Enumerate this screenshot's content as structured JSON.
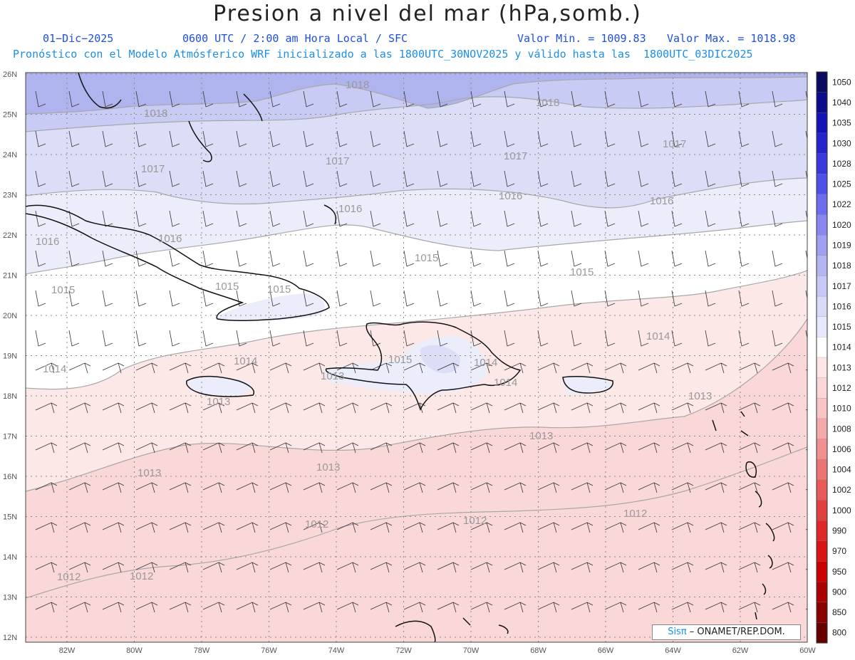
{
  "header": {
    "title": "Presion a nivel del mar (hPa,somb.)",
    "date": "01−Dic−2025",
    "time_info": "0600 UTC / 2:00 am Hora Local / SFC",
    "min_label": "Valor Min. = 1009.83",
    "max_label": "Valor Max. = 1018.98",
    "model_info": "Pronóstico con el Modelo Atmósferico WRF inicializado a las 1800UTC_30NOV2025 y válido hasta las  1800UTC_03DIC2025"
  },
  "map": {
    "lon_ticks": [
      "82W",
      "80W",
      "78W",
      "76W",
      "74W",
      "72W",
      "70W",
      "68W",
      "66W",
      "64W",
      "62W",
      "60W"
    ],
    "lat_ticks": [
      "26N",
      "25N",
      "24N",
      "23N",
      "22N",
      "21N",
      "20N",
      "19N",
      "18N",
      "17N",
      "16N",
      "15N",
      "14N",
      "13N",
      "12N"
    ],
    "contour_labels": [
      "1018",
      "1018",
      "1018",
      "1017",
      "1017",
      "1017",
      "1017",
      "1016",
      "1016",
      "1016",
      "1016",
      "1016",
      "1015",
      "1015",
      "1015",
      "1015",
      "1015",
      "1015",
      "1014",
      "1014",
      "1014",
      "1014",
      "1014",
      "1013",
      "1013",
      "1013",
      "1013",
      "1013",
      "1013",
      "1012",
      "1012",
      "1012",
      "1012",
      "1012"
    ],
    "colors": {
      "1018": "#b0b4ee",
      "1017": "#c8cbf3",
      "1016": "#dcdef8",
      "1015": "#ebedfb",
      "1014": "#ffffff",
      "1013": "#fde8e8",
      "1012": "#fad8d8",
      "contour_line": "#a8a8a8",
      "coast": "#111111"
    }
  },
  "colorbar": {
    "labels": [
      "1050",
      "1040",
      "1035",
      "1030",
      "1028",
      "1025",
      "1022",
      "1020",
      "1019",
      "1018",
      "1017",
      "1016",
      "1015",
      "1014",
      "1013",
      "1012",
      "1010",
      "1008",
      "1006",
      "1004",
      "1002",
      "1000",
      "990",
      "970",
      "950",
      "900",
      "850",
      "800"
    ],
    "colors": [
      "#0a0a5e",
      "#0c0c8a",
      "#1414b4",
      "#2424cc",
      "#3838dc",
      "#5050e6",
      "#6c6cec",
      "#8888f0",
      "#a0a0f2",
      "#b4b6f4",
      "#c6c8f6",
      "#d8daf8",
      "#e6e8fb",
      "#ffffff",
      "#fde6e6",
      "#fbd6d6",
      "#f8c4c4",
      "#f4aaaa",
      "#f09090",
      "#ec7474",
      "#e65a5a",
      "#e04040",
      "#dc2828",
      "#d81414",
      "#c80000",
      "#aa0000",
      "#8a0000",
      "#660000"
    ]
  },
  "badge": {
    "sis": "Sisπ",
    "org": " – ONAMET/REP.DOM."
  }
}
